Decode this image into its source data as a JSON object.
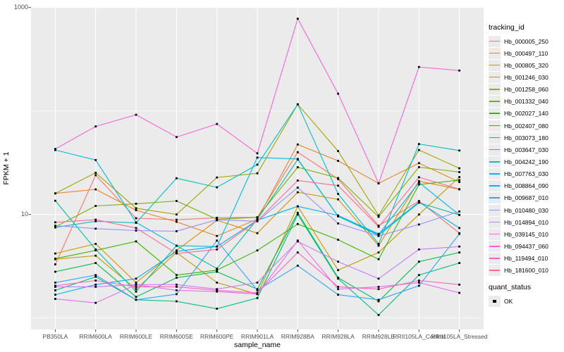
{
  "figure": {
    "x_axis": {
      "title": "sample_name",
      "tick_color": "#4d4d4d"
    },
    "y_axis": {
      "title": "FPKM + 1",
      "tick_labels": [
        "1000",
        "10"
      ],
      "tick_values": [
        1000,
        10
      ]
    },
    "legend_color": {
      "title": "tracking_id"
    },
    "legend_shape": {
      "title": "quant_status",
      "items": [
        {
          "label": "OK",
          "shape": "square",
          "color": "#000000"
        }
      ]
    },
    "colors": {
      "panel_bg": "#ebebeb",
      "grid_major": "#ffffff",
      "grid_minor": "#f5f5f5",
      "point": "#000000",
      "tick_mark": "#333333"
    }
  },
  "chart_data": {
    "type": "line",
    "title": "",
    "xlabel": "sample_name",
    "ylabel": "FPKM + 1",
    "y_scale": "log10",
    "ylim": [
      0.77,
      1000
    ],
    "y_tick_values": [
      10,
      1000
    ],
    "y_minor_gridlines": [
      1,
      100
    ],
    "grid": true,
    "legend_position": "right",
    "point_shape": "filled-square",
    "categories": [
      "PB350LA",
      "RRIM600LA",
      "RRIM600LE",
      "RRIM600SE",
      "RRIM600PE",
      "RRIM901LA",
      "RRIM928BA",
      "RRIM928LA",
      "RRIM928LE",
      "RRII105LA_Control",
      "RRII105LA_Stressed"
    ],
    "series": [
      {
        "name": "Hb_000005_250",
        "color": "#F8766D",
        "values": [
          3.3,
          24,
          9.2,
          8.9,
          9.3,
          9.4,
          40,
          22,
          7.8,
          13.5,
          6.6
        ]
      },
      {
        "name": "Hb_000497_110",
        "color": "#EA8331",
        "values": [
          16,
          17.5,
          11,
          8.5,
          6.2,
          9,
          47.5,
          33,
          20,
          31.4,
          20.6
        ]
      },
      {
        "name": "Hb_000805_320",
        "color": "#D89000",
        "values": [
          4.2,
          5.2,
          2.2,
          4.5,
          8.8,
          6.6,
          16.4,
          14,
          5,
          21,
          17.5
        ]
      },
      {
        "name": "Hb_001246_030",
        "color": "#C09B00",
        "values": [
          3.7,
          4,
          1.9,
          4.3,
          2.2,
          1.7,
          12,
          2.9,
          4.3,
          10,
          23
        ]
      },
      {
        "name": "Hb_001258_060",
        "color": "#A3A500",
        "values": [
          16,
          25.3,
          11.5,
          10,
          22.8,
          25,
          116,
          41,
          9.8,
          42,
          28
        ]
      },
      {
        "name": "Hb_001332_040",
        "color": "#7CAE00",
        "values": [
          7.6,
          12.1,
          12.7,
          13.5,
          9,
          9.4,
          28.6,
          22.5,
          9.5,
          28.7,
          25.7
        ]
      },
      {
        "name": "Hb_002027_140",
        "color": "#39B600",
        "values": [
          3.75,
          4.5,
          5.5,
          2.6,
          2.9,
          4.5,
          8.1,
          5.7,
          3.7,
          19.5,
          21.5
        ]
      },
      {
        "name": "Hb_002407_080",
        "color": "#00BB4E",
        "values": [
          2.8,
          3.4,
          1.6,
          2.45,
          2.8,
          1.9,
          10.4,
          2.45,
          1.45,
          3.5,
          4.3
        ]
      },
      {
        "name": "Hb_003073_180",
        "color": "#00BF7D",
        "values": [
          1.85,
          2.5,
          1.5,
          1.45,
          1.23,
          1.56,
          10,
          2.4,
          1.07,
          2.6,
          3.4
        ]
      },
      {
        "name": "Hb_003647_030",
        "color": "#00C1A3",
        "values": [
          13.6,
          4.6,
          1.8,
          5,
          3,
          9,
          34,
          9.6,
          6.3,
          13,
          9.9
        ]
      },
      {
        "name": "Hb_004242_190",
        "color": "#00BFC4",
        "values": [
          7.5,
          8.6,
          8.3,
          22.4,
          18.3,
          30.3,
          116,
          15.8,
          5.2,
          48,
          41.5
        ]
      },
      {
        "name": "Hb_007763_030",
        "color": "#00BAE0",
        "values": [
          42,
          33.6,
          8.4,
          5,
          4.9,
          35.5,
          34.4,
          9.6,
          6.4,
          20.4,
          9.9
        ]
      },
      {
        "name": "Hb_008864_090",
        "color": "#00B0F6",
        "values": [
          1.68,
          2.1,
          2.4,
          4.4,
          4.9,
          8.8,
          12,
          9.8,
          6.5,
          13.2,
          7.4
        ]
      },
      {
        "name": "Hb_009687_010",
        "color": "#35A2FF",
        "values": [
          2.2,
          2.6,
          1.5,
          1.7,
          5.6,
          1.85,
          3.2,
          1.68,
          1.5,
          2.05,
          6.5
        ]
      },
      {
        "name": "Hb_010480_030",
        "color": "#9590FF",
        "values": [
          7.8,
          7.3,
          7,
          6.9,
          8.9,
          8.6,
          18.2,
          8.2,
          6.2,
          8,
          10.7
        ]
      },
      {
        "name": "Hb_014894_010",
        "color": "#C77CFF",
        "values": [
          2,
          2,
          2.1,
          2.1,
          1.9,
          2.2,
          5.5,
          3.5,
          2.4,
          4.6,
          4.9
        ]
      },
      {
        "name": "Hb_039145_010",
        "color": "#E76BF3",
        "values": [
          1.53,
          1.4,
          2.1,
          1.85,
          1.8,
          1.7,
          5.6,
          1.9,
          2,
          2.2,
          1.75
        ]
      },
      {
        "name": "Hb_094437_060",
        "color": "#FA62DB",
        "values": [
          43,
          71,
          92,
          56,
          75,
          39,
          780,
          147,
          20,
          266,
          246
        ]
      },
      {
        "name": "Hb_119494_010",
        "color": "#FF62BC",
        "values": [
          2.05,
          2.3,
          2,
          2,
          1.85,
          1.75,
          4.3,
          2,
          1.9,
          2.3,
          2.1
        ]
      },
      {
        "name": "Hb_181600_010",
        "color": "#FF6A98",
        "values": [
          8.4,
          8.9,
          7.4,
          4.2,
          4.6,
          8.7,
          21.3,
          19,
          7.6,
          22.9,
          17.6
        ]
      }
    ]
  }
}
